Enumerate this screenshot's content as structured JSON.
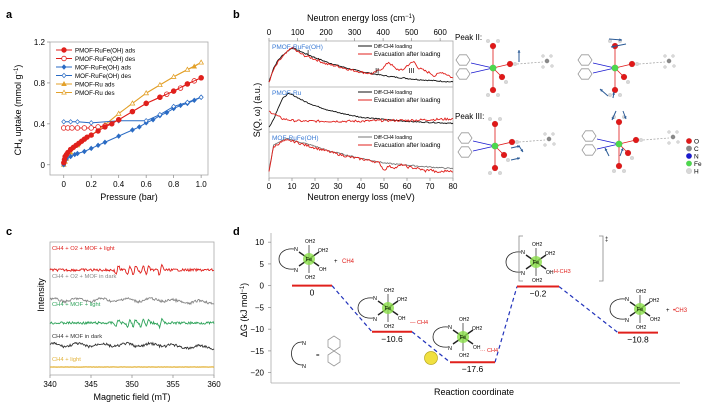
{
  "figure": {
    "panel_labels": [
      "a",
      "b",
      "c",
      "d"
    ]
  },
  "chart_data": [
    {
      "panel": "a",
      "type": "line",
      "xlabel": "Pressure (bar)",
      "ylabel": "CH4 uptake (mmol g-1)",
      "xlim": [
        -0.1,
        1.05
      ],
      "ylim": [
        -0.1,
        1.2
      ],
      "xticks": [
        "0",
        "0.2",
        "0.4",
        "0.6",
        "0.8",
        "1.0"
      ],
      "xtick_values": [
        0,
        0.2,
        0.4,
        0.6,
        0.8,
        1.0
      ],
      "yticks": [
        "0",
        "0.4",
        "0.8",
        "1.2"
      ],
      "ytick_values": [
        0,
        0.4,
        0.8,
        1.2
      ],
      "legend_position": "top-left",
      "series": [
        {
          "name": "PMOF-RuFe(OH) ads",
          "color": "#e0201c",
          "marker": "filled-circle",
          "x": [
            0,
            0.005,
            0.01,
            0.02,
            0.03,
            0.05,
            0.07,
            0.09,
            0.11,
            0.13,
            0.15,
            0.17,
            0.2,
            0.25,
            0.3,
            0.35,
            0.4,
            0.5,
            0.6,
            0.7,
            0.8,
            0.9,
            1.0
          ],
          "y": [
            0.02,
            0.05,
            0.08,
            0.1,
            0.12,
            0.15,
            0.17,
            0.19,
            0.21,
            0.23,
            0.25,
            0.27,
            0.29,
            0.33,
            0.37,
            0.4,
            0.44,
            0.52,
            0.6,
            0.66,
            0.72,
            0.79,
            0.85
          ]
        },
        {
          "name": "PMOF-RuFe(OH) des",
          "color": "#e0201c",
          "marker": "open-circle",
          "x": [
            0,
            0.03,
            0.06,
            0.1,
            0.15,
            0.2,
            0.25,
            0.3,
            0.4,
            0.5,
            0.6,
            0.7,
            0.75,
            0.8,
            0.85,
            0.9,
            0.95,
            1.0
          ],
          "y": [
            0.36,
            0.36,
            0.36,
            0.36,
            0.36,
            0.36,
            0.37,
            0.38,
            0.44,
            0.52,
            0.6,
            0.66,
            0.69,
            0.72,
            0.75,
            0.79,
            0.82,
            0.85
          ]
        },
        {
          "name": "MOF-RuFe(OH) ads",
          "color": "#2a6bc4",
          "marker": "filled-diamond",
          "x": [
            0,
            0.01,
            0.02,
            0.05,
            0.08,
            0.1,
            0.15,
            0.2,
            0.25,
            0.3,
            0.4,
            0.5,
            0.55,
            0.6,
            0.65,
            0.7,
            0.75,
            0.8,
            0.85,
            0.9,
            0.95,
            1.0
          ],
          "y": [
            0.0,
            0.04,
            0.06,
            0.08,
            0.1,
            0.11,
            0.13,
            0.16,
            0.19,
            0.22,
            0.28,
            0.34,
            0.37,
            0.41,
            0.44,
            0.48,
            0.51,
            0.55,
            0.58,
            0.6,
            0.63,
            0.66
          ]
        },
        {
          "name": "MOF-RuFe(OH) des",
          "color": "#2a6bc4",
          "marker": "open-diamond",
          "x": [
            0,
            0.05,
            0.1,
            0.2,
            0.4,
            0.6,
            0.7,
            0.8,
            0.9,
            1.0
          ],
          "y": [
            0.42,
            0.42,
            0.42,
            0.41,
            0.43,
            0.43,
            0.49,
            0.57,
            0.61,
            0.66
          ]
        },
        {
          "name": "PMOF-Ru ads",
          "color": "#e3a12a",
          "marker": "filled-triangle",
          "x": [
            0,
            0.01,
            0.02,
            0.05,
            0.1,
            0.2,
            0.3,
            0.4,
            0.5,
            0.6,
            0.7,
            0.8,
            0.9,
            0.95,
            1.0
          ],
          "y": [
            0.0,
            0.03,
            0.06,
            0.12,
            0.19,
            0.29,
            0.39,
            0.5,
            0.6,
            0.7,
            0.78,
            0.86,
            0.93,
            0.96,
            1.0
          ]
        },
        {
          "name": "PMOF-Ru des",
          "color": "#e3a12a",
          "marker": "open-triangle",
          "x": [
            0.3,
            0.4,
            0.5,
            0.6,
            0.7,
            0.8,
            0.9,
            1.0
          ],
          "y": [
            0.39,
            0.5,
            0.6,
            0.7,
            0.78,
            0.86,
            0.93,
            1.0
          ]
        }
      ]
    },
    {
      "panel": "b",
      "type": "line",
      "xlabel": "Neutron energy loss (meV)",
      "x2label": "Neutron energy loss (cm-1)",
      "ylabel": "S(Q, ω) (a.u.)",
      "xlim": [
        0,
        80
      ],
      "x2lim": [
        0,
        645
      ],
      "xticks": [
        "0",
        "10",
        "20",
        "30",
        "40",
        "50",
        "60",
        "70",
        "80"
      ],
      "xtick_values": [
        0,
        10,
        20,
        30,
        40,
        50,
        60,
        70,
        80
      ],
      "x2ticks": [
        "0",
        "100",
        "200",
        "300",
        "400",
        "500",
        "600"
      ],
      "x2tick_values": [
        0,
        100,
        200,
        300,
        400,
        500,
        600
      ],
      "subpanels": [
        {
          "name": "PMOF-RuFe(OH)",
          "peak_labels": [
            "I",
            "II",
            "III"
          ],
          "peak_positions_meV": [
            17,
            47,
            62
          ],
          "legend": [
            "Diff-CH4 loading",
            "Evacuation after loading"
          ],
          "series": [
            {
              "name": "Diff-CH4 loading",
              "color": "#111111",
              "x": [
                0,
                2,
                4,
                6,
                8,
                10,
                12,
                15,
                20,
                25,
                30,
                35,
                40,
                45,
                50,
                55,
                60,
                65,
                70,
                75,
                80
              ],
              "y": [
                0.05,
                0.4,
                0.6,
                0.72,
                0.82,
                0.9,
                0.86,
                0.78,
                0.66,
                0.55,
                0.46,
                0.38,
                0.31,
                0.26,
                0.21,
                0.17,
                0.14,
                0.11,
                0.09,
                0.07,
                0.05
              ]
            },
            {
              "name": "Evacuation after loading",
              "color": "#e0201c",
              "x": [
                0,
                2,
                4,
                6,
                8,
                10,
                12,
                15,
                20,
                25,
                30,
                35,
                40,
                45,
                50,
                52,
                55,
                58,
                60,
                63,
                65,
                68,
                70,
                72,
                75,
                78,
                80
              ],
              "y": [
                0.05,
                0.35,
                0.55,
                0.68,
                0.8,
                0.92,
                0.82,
                0.72,
                0.62,
                0.5,
                0.44,
                0.36,
                0.3,
                0.25,
                0.42,
                0.55,
                0.38,
                0.34,
                0.46,
                0.56,
                0.4,
                0.32,
                0.28,
                0.2,
                0.3,
                0.22,
                0.14
              ]
            }
          ]
        },
        {
          "name": "PMOF-Ru",
          "legend": [
            "Diff-CH4 loading",
            "Evacuation after loading"
          ],
          "series": [
            {
              "name": "Diff-CH4 loading",
              "color": "#111111",
              "x": [
                0,
                2,
                4,
                6,
                8,
                10,
                12,
                15,
                20,
                25,
                30,
                35,
                40,
                45,
                50,
                55,
                60,
                65,
                70,
                75,
                80
              ],
              "y": [
                0.05,
                0.25,
                0.55,
                0.78,
                0.9,
                0.88,
                0.82,
                0.72,
                0.6,
                0.5,
                0.42,
                0.36,
                0.3,
                0.28,
                0.24,
                0.22,
                0.2,
                0.18,
                0.17,
                0.16,
                0.14
              ]
            },
            {
              "name": "Evacuation after loading",
              "color": "#e0201c",
              "x": [
                0,
                2,
                4,
                6,
                10,
                15,
                20,
                30,
                40,
                50,
                60,
                70,
                80
              ],
              "y": [
                0.45,
                0.4,
                0.32,
                0.26,
                0.22,
                0.2,
                0.2,
                0.2,
                0.2,
                0.22,
                0.22,
                0.24,
                0.26
              ]
            }
          ]
        },
        {
          "name": "MOF-RuFe(OH)",
          "legend": [
            "Diff-CH4 loading",
            "Evacuation after loading"
          ],
          "series": [
            {
              "name": "Diff-CH4 loading",
              "color": "#777777",
              "x": [
                0,
                2,
                4,
                6,
                8,
                10,
                12,
                15,
                20,
                25,
                30,
                35,
                40,
                45,
                50,
                55,
                60,
                65,
                70,
                75,
                80
              ],
              "y": [
                0.1,
                0.75,
                0.8,
                0.88,
                0.9,
                0.88,
                0.84,
                0.8,
                0.72,
                0.62,
                0.55,
                0.48,
                0.42,
                0.36,
                0.3,
                0.27,
                0.25,
                0.22,
                0.2,
                0.18,
                0.16
              ]
            },
            {
              "name": "Evacuation after loading",
              "color": "#e0201c",
              "x": [
                0,
                2,
                4,
                6,
                8,
                10,
                12,
                15,
                20,
                25,
                30,
                35,
                40,
                45,
                48,
                50,
                52,
                55,
                58,
                60,
                65,
                68,
                70,
                73,
                75,
                78,
                80
              ],
              "y": [
                0.1,
                0.7,
                0.78,
                0.84,
                0.86,
                0.85,
                0.82,
                0.76,
                0.68,
                0.6,
                0.52,
                0.45,
                0.4,
                0.35,
                0.3,
                0.12,
                0.22,
                0.18,
                0.26,
                0.2,
                0.16,
                0.1,
                0.14,
                0.06,
                0.08,
                0.12,
                0.06
              ]
            }
          ]
        }
      ]
    },
    {
      "panel": "c",
      "type": "line",
      "xlabel": "Magnetic field (mT)",
      "ylabel": "Intensity",
      "xlim": [
        340,
        360
      ],
      "xticks": [
        "340",
        "345",
        "350",
        "355",
        "360"
      ],
      "xtick_values": [
        340,
        345,
        350,
        355,
        360
      ],
      "series": [
        {
          "name": "CH4 + O2 + MOF + light",
          "color": "#e0201c",
          "signal": "epr-septet"
        },
        {
          "name": "CH4 + O2 + MOF in dark",
          "color": "#888888",
          "signal": "noise"
        },
        {
          "name": "CH4 + MOF + light",
          "color": "#2ea35a",
          "signal": "epr-septet"
        },
        {
          "name": "CH4 + MOF in dark",
          "color": "#333333",
          "signal": "noise"
        },
        {
          "name": "CH4 + light",
          "color": "#e3b33a",
          "signal": "flat"
        }
      ]
    },
    {
      "panel": "d",
      "type": "line",
      "xlabel": "Reaction coordinate",
      "ylabel": "ΔG (kJ mol-1)",
      "ylim": [
        -21,
        10.5
      ],
      "yticks": [
        "10",
        "5",
        "0",
        "−5",
        "−10",
        "−15",
        "−20"
      ],
      "ytick_values": [
        10,
        5,
        0,
        -5,
        -10,
        -15,
        -20
      ],
      "levels": [
        {
          "label": "0",
          "value": 0
        },
        {
          "label": "−10.6",
          "value": -10.6
        },
        {
          "label": "−17.6",
          "value": -17.6
        },
        {
          "label": "−0.2",
          "value": -0.2
        },
        {
          "label": "−10.8",
          "value": -10.8
        }
      ],
      "level_color": "#e0201c",
      "connector_color": "#2233bb"
    }
  ],
  "panel_b_molecules": {
    "peak_ii_label": "Peak II:",
    "peak_iii_label": "Peak III:",
    "legend": [
      {
        "label": "O",
        "color": "#e01818"
      },
      {
        "label": "C",
        "color": "#8a8a8a"
      },
      {
        "label": "N",
        "color": "#1a1ad0"
      },
      {
        "label": "Fe",
        "color": "#4cd84c"
      },
      {
        "label": "H",
        "color": "#d8d8d8"
      }
    ]
  },
  "panel_d_annotations": {
    "fe": "Fe",
    "oh2": "OH2",
    "oh": "OH",
    "ch4": "CH4",
    "ch3": "•CH3",
    "n": "N",
    "h": "H",
    "o": "O",
    "plus": "+",
    "equals": "=",
    "ts_mark": "‡",
    "light_symbol": "hν",
    "bracket_charge": "*|"
  }
}
